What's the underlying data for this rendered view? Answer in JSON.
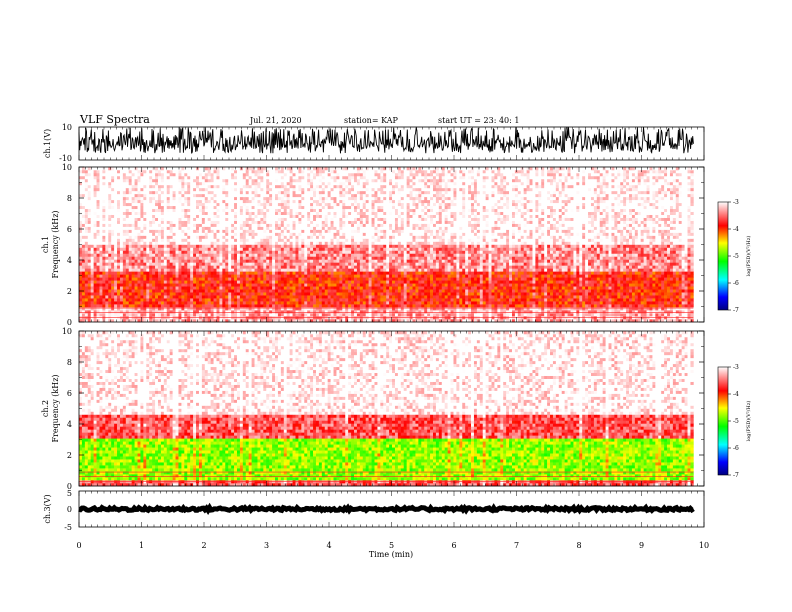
{
  "header": {
    "title": "VLF Spectra",
    "date": "Jul. 21, 2020",
    "station": "station= KAP",
    "start": "start UT =  23: 40: 1"
  },
  "chart_data": [
    {
      "id": "ch1-waveform",
      "type": "line",
      "ylabel": "ch.1(V)",
      "ylim": [
        -10,
        10
      ],
      "yticks": [
        "10",
        "-10"
      ],
      "xlim": [
        0,
        10
      ],
      "x_data_extent": [
        0,
        9.83
      ],
      "note_values": "dense noise waveform spanning roughly -6 to +10 V"
    },
    {
      "id": "ch1-spectrogram",
      "type": "heatmap",
      "ylabel": "ch.1\nFrequency (kHz)",
      "ylim": [
        0,
        10
      ],
      "yticks": [
        "0",
        "2",
        "4",
        "6",
        "8",
        "10"
      ],
      "xlim": [
        0,
        10
      ],
      "x_data_extent": [
        0,
        9.83
      ],
      "colorbar": {
        "label": "log(PSD)(V²/Hz)",
        "range": [
          -7,
          -3
        ],
        "ticks": [
          "-3",
          "-4",
          "-5",
          "-6",
          "-7"
        ]
      },
      "bands_khz": [
        {
          "from": 0,
          "to": 1.0,
          "log_psd": -3.3
        },
        {
          "from": 1.0,
          "to": 3.2,
          "log_psd": -3.9
        },
        {
          "from": 3.2,
          "to": 5.0,
          "log_psd": -3.4
        },
        {
          "from": 5.0,
          "to": 10.0,
          "log_psd": -3.0
        }
      ]
    },
    {
      "id": "ch2-spectrogram",
      "type": "heatmap",
      "ylabel": "ch.2\nFrequency (kHz)",
      "ylim": [
        0,
        10
      ],
      "yticks": [
        "0",
        "2",
        "4",
        "6",
        "8",
        "10"
      ],
      "xlim": [
        0,
        10
      ],
      "x_data_extent": [
        0,
        9.83
      ],
      "colorbar": {
        "label": "log(PSD)(V²/Hz)",
        "range": [
          -7,
          -3
        ],
        "ticks": [
          "-3",
          "-4",
          "-5",
          "-6",
          "-7"
        ]
      },
      "bands_khz": [
        {
          "from": 0,
          "to": 0.4,
          "log_psd": -3.6
        },
        {
          "from": 0.4,
          "to": 3.1,
          "log_psd": -4.8
        },
        {
          "from": 3.1,
          "to": 4.6,
          "log_psd": -3.6
        },
        {
          "from": 4.6,
          "to": 10.0,
          "log_psd": -3.0
        }
      ]
    },
    {
      "id": "ch3-waveform",
      "type": "line",
      "ylabel": "ch.3(V)",
      "ylim": [
        -5,
        5
      ],
      "yticks": [
        "5",
        "0",
        "-5"
      ],
      "xlim": [
        0,
        10
      ],
      "x_data_extent": [
        0,
        9.83
      ],
      "note_values": "thick flat trace centered at about 0 V (±0.4 V)"
    }
  ],
  "xaxis": {
    "label": "Time (min)",
    "ticks": [
      "0",
      "1",
      "2",
      "3",
      "4",
      "5",
      "6",
      "7",
      "8",
      "9",
      "10"
    ]
  }
}
